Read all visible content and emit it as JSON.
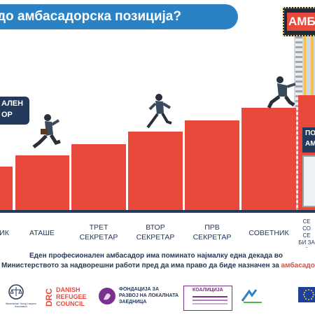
{
  "title": "до амбасадорска позиција?",
  "top_sign": "АМБ",
  "left_sign": [
    "АЛЕН",
    "ОР"
  ],
  "right_sign": [
    "ПО",
    "АМ"
  ],
  "steps": [
    {
      "label": "ИК"
    },
    {
      "label": "АТАШЕ"
    },
    {
      "label": "ТРЕТ СЕКРЕТАР"
    },
    {
      "label": "ВТОР СЕКРЕТАР"
    },
    {
      "label": "ПРВ СЕКРЕТАР"
    },
    {
      "label": "СОВЕТНИК"
    },
    {
      "label": "СЕ СО СЕ БИ ЗА А"
    }
  ],
  "caption": {
    "line1": "Еден професионален амбасадор има поминато најмалку една декада во",
    "line2_a": "Министерството за надворешни работи пред да има право да биде назначен за ",
    "line2_b": "амбасадор"
  },
  "logos": {
    "drc_1": "DANISH",
    "drc_2": "REFUGEE",
    "drc_3": "COUNCIL",
    "drc_mark": "DRC",
    "fondacija_1": "ФОНДАЦИЈА ЗА",
    "fondacija_2": "РАЗВОЈ НА ЛОКАЛНАТА",
    "fondacija_3": "ЗАЕДНИЦА",
    "koalicija": "КОАЛИЦИЈА",
    "myla_small": "Macedonian Young Lawyers Association"
  },
  "colors": {
    "step": "#e8493a",
    "title_bar": "#2a82c4",
    "text": "#233a5c",
    "sign_bg": "#e8493a",
    "sign_frame": "#233a5c"
  }
}
